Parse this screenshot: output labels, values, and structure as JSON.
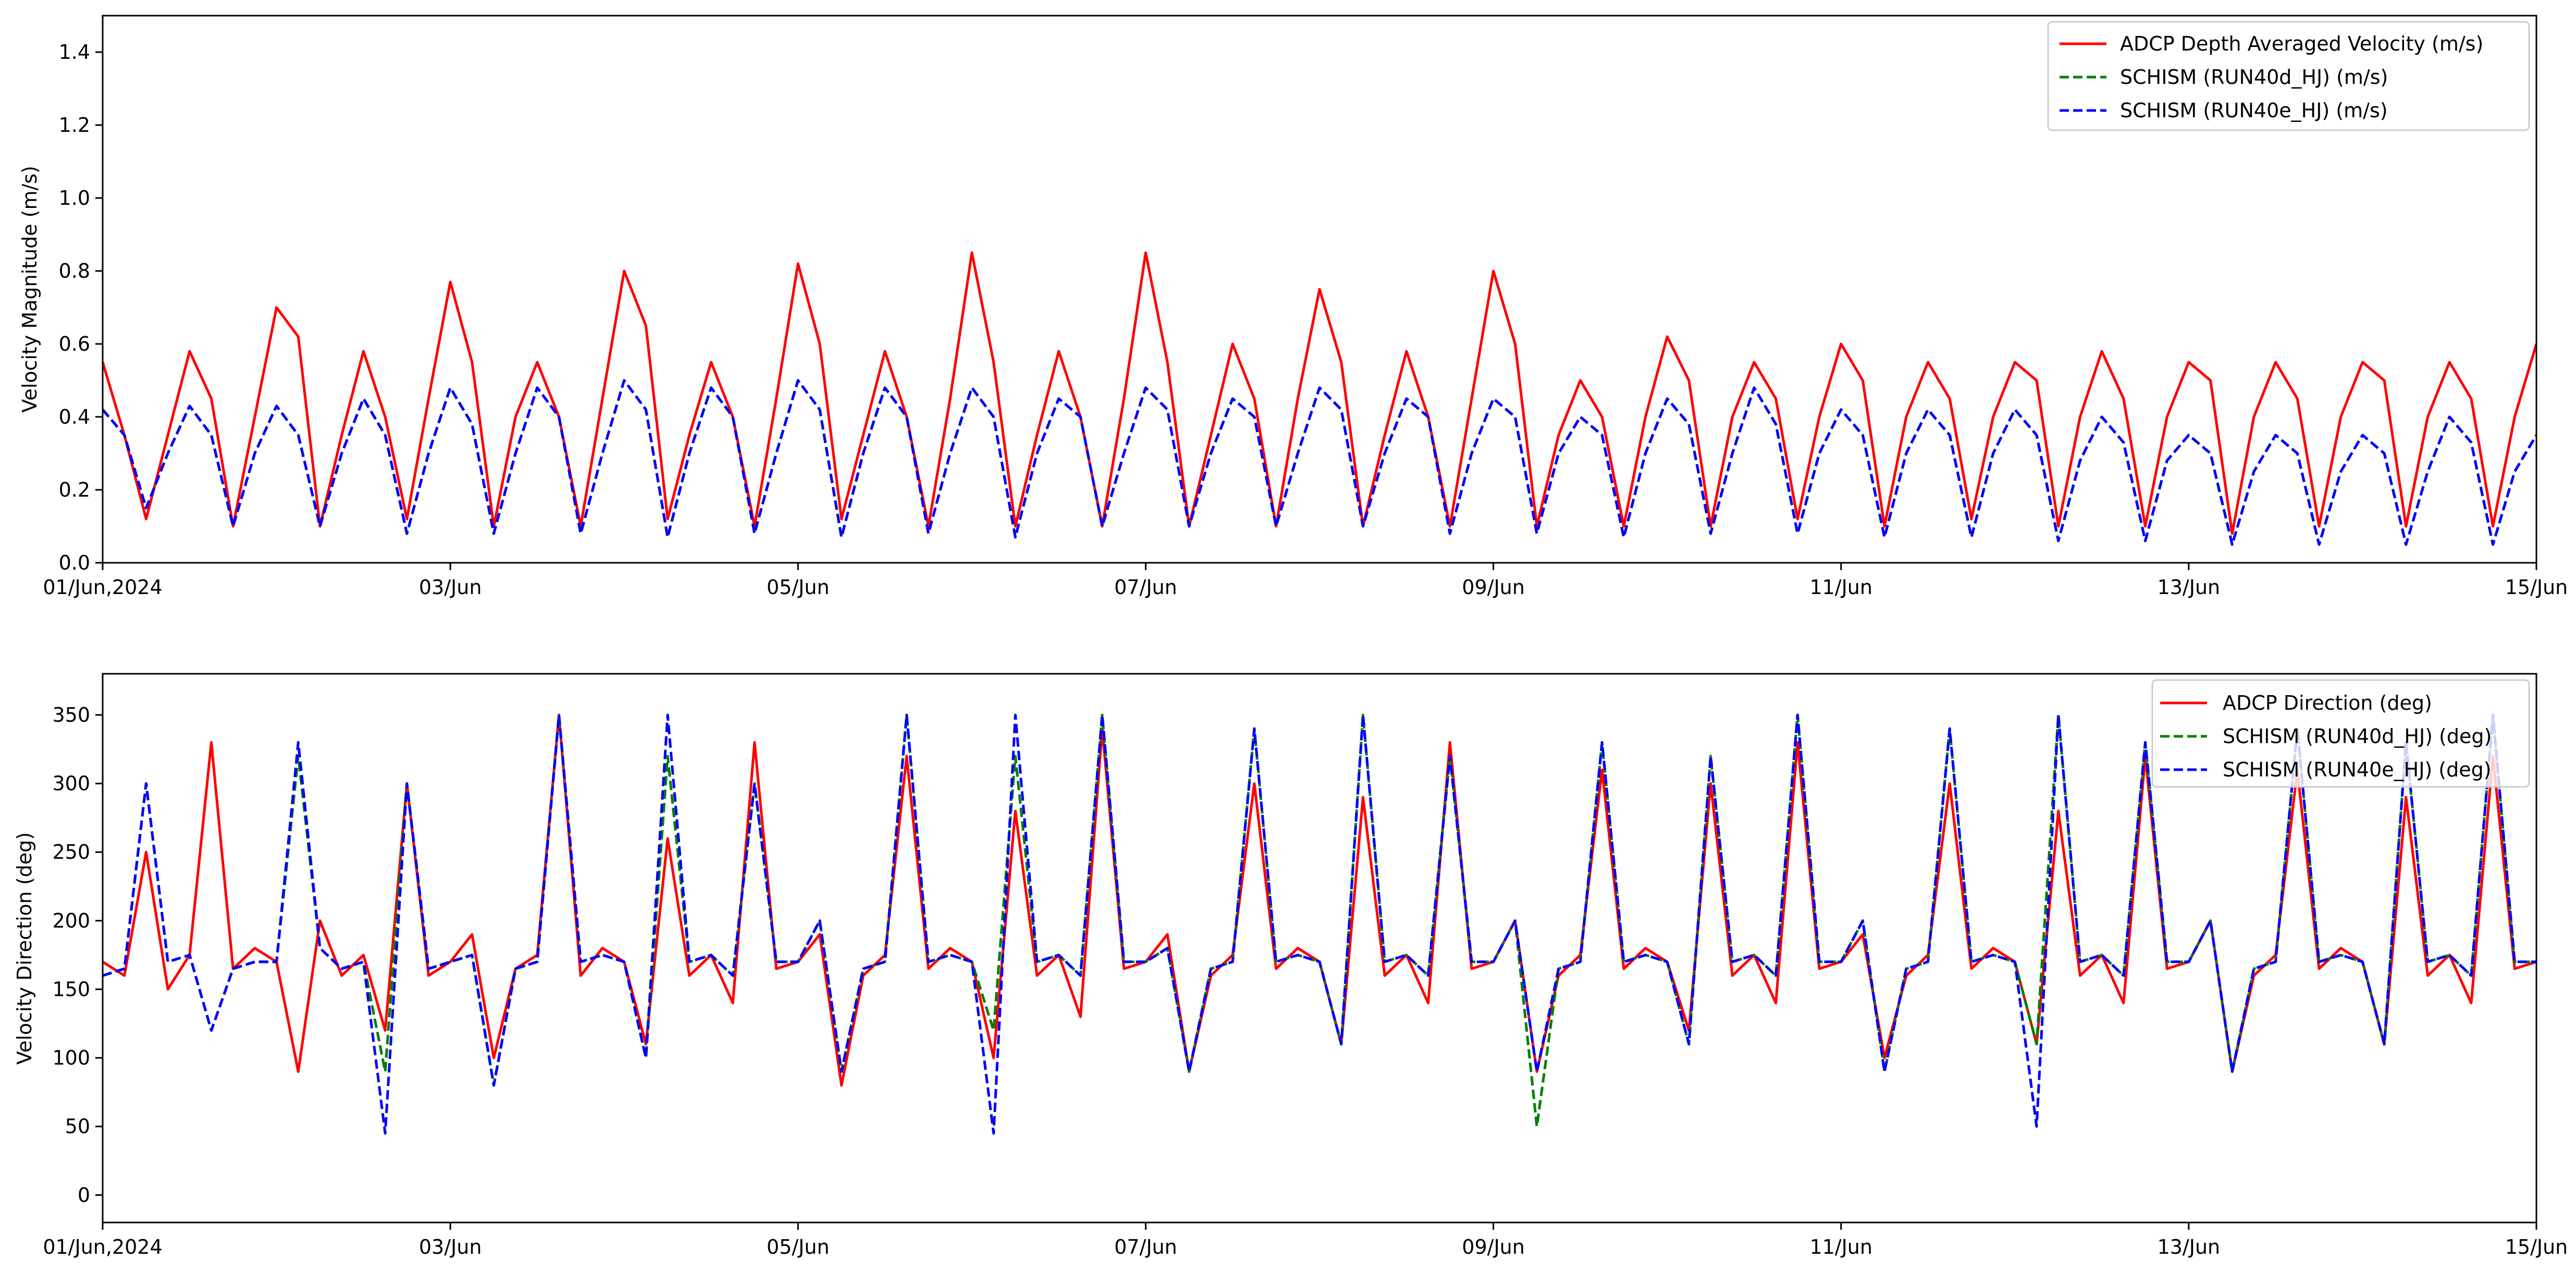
{
  "chart_data": [
    {
      "type": "line",
      "ylabel": "Velocity Magnitude (m/s)",
      "xlabel": "",
      "xlim": [
        "2024-06-01",
        "2024-06-15"
      ],
      "ylim": [
        0.0,
        1.5
      ],
      "grid": false,
      "legend_position": "top-right",
      "x_ticks": [
        "01/Jun,2024",
        "03/Jun",
        "05/Jun",
        "07/Jun",
        "09/Jun",
        "11/Jun",
        "13/Jun",
        "15/Jun"
      ],
      "y_ticks": [
        "0.0",
        "0.2",
        "0.4",
        "0.6",
        "0.8",
        "1.0",
        "1.2",
        "1.4"
      ],
      "series_note": "values sampled every 3 hours from 2024-06-01 00:00 to 2024-06-15 00:00",
      "series": [
        {
          "name": "ADCP Depth Averaged Velocity (m/s)",
          "style": "solid",
          "color": "#ff0000",
          "values": [
            0.55,
            0.35,
            0.12,
            0.35,
            0.58,
            0.45,
            0.1,
            0.4,
            0.7,
            0.62,
            0.1,
            0.35,
            0.58,
            0.4,
            0.12,
            0.45,
            0.77,
            0.55,
            0.1,
            0.4,
            0.55,
            0.4,
            0.1,
            0.45,
            0.8,
            0.65,
            0.12,
            0.35,
            0.55,
            0.4,
            0.1,
            0.45,
            0.82,
            0.6,
            0.12,
            0.35,
            0.58,
            0.4,
            0.1,
            0.45,
            0.85,
            0.55,
            0.1,
            0.35,
            0.58,
            0.4,
            0.1,
            0.45,
            0.85,
            0.55,
            0.1,
            0.35,
            0.6,
            0.45,
            0.1,
            0.45,
            0.75,
            0.55,
            0.1,
            0.35,
            0.58,
            0.4,
            0.1,
            0.45,
            0.8,
            0.6,
            0.1,
            0.35,
            0.5,
            0.4,
            0.1,
            0.4,
            0.62,
            0.5,
            0.1,
            0.4,
            0.55,
            0.45,
            0.12,
            0.4,
            0.6,
            0.5,
            0.1,
            0.4,
            0.55,
            0.45,
            0.12,
            0.4,
            0.55,
            0.5,
            0.1,
            0.4,
            0.58,
            0.45,
            0.1,
            0.4,
            0.55,
            0.5,
            0.08,
            0.4,
            0.55,
            0.45,
            0.1,
            0.4,
            0.55,
            0.5,
            0.1,
            0.4,
            0.55,
            0.45,
            0.1,
            0.4,
            0.6
          ]
        },
        {
          "name": "SCHISM (RUN40d_HJ) (m/s)",
          "style": "dashed",
          "color": "#008000",
          "values": [
            0.42,
            0.35,
            0.15,
            0.3,
            0.43,
            0.35,
            0.1,
            0.3,
            0.43,
            0.35,
            0.1,
            0.3,
            0.45,
            0.35,
            0.08,
            0.3,
            0.48,
            0.38,
            0.08,
            0.3,
            0.48,
            0.4,
            0.08,
            0.3,
            0.5,
            0.42,
            0.07,
            0.3,
            0.48,
            0.4,
            0.08,
            0.3,
            0.5,
            0.42,
            0.07,
            0.3,
            0.48,
            0.4,
            0.08,
            0.3,
            0.48,
            0.4,
            0.07,
            0.3,
            0.45,
            0.4,
            0.1,
            0.3,
            0.48,
            0.42,
            0.1,
            0.3,
            0.45,
            0.4,
            0.1,
            0.3,
            0.48,
            0.42,
            0.1,
            0.3,
            0.45,
            0.4,
            0.08,
            0.3,
            0.45,
            0.4,
            0.08,
            0.3,
            0.4,
            0.35,
            0.07,
            0.3,
            0.45,
            0.38,
            0.08,
            0.3,
            0.48,
            0.38,
            0.08,
            0.3,
            0.42,
            0.35,
            0.07,
            0.3,
            0.42,
            0.35,
            0.07,
            0.3,
            0.42,
            0.35,
            0.06,
            0.28,
            0.4,
            0.33,
            0.06,
            0.28,
            0.35,
            0.3,
            0.05,
            0.25,
            0.35,
            0.3,
            0.05,
            0.25,
            0.35,
            0.3,
            0.05,
            0.25,
            0.4,
            0.33,
            0.05,
            0.25,
            0.35
          ]
        },
        {
          "name": "SCHISM (RUN40e_HJ) (m/s)",
          "style": "dashed",
          "color": "#0000ff",
          "values": [
            0.42,
            0.35,
            0.15,
            0.3,
            0.43,
            0.35,
            0.1,
            0.3,
            0.43,
            0.35,
            0.1,
            0.3,
            0.45,
            0.35,
            0.08,
            0.3,
            0.48,
            0.38,
            0.08,
            0.3,
            0.48,
            0.4,
            0.08,
            0.3,
            0.5,
            0.42,
            0.07,
            0.3,
            0.48,
            0.4,
            0.08,
            0.3,
            0.5,
            0.42,
            0.07,
            0.3,
            0.48,
            0.4,
            0.08,
            0.3,
            0.48,
            0.4,
            0.07,
            0.3,
            0.45,
            0.4,
            0.1,
            0.3,
            0.48,
            0.42,
            0.1,
            0.3,
            0.45,
            0.4,
            0.1,
            0.3,
            0.48,
            0.42,
            0.1,
            0.3,
            0.45,
            0.4,
            0.08,
            0.3,
            0.45,
            0.4,
            0.08,
            0.3,
            0.4,
            0.35,
            0.07,
            0.3,
            0.45,
            0.38,
            0.08,
            0.3,
            0.48,
            0.38,
            0.08,
            0.3,
            0.42,
            0.35,
            0.07,
            0.3,
            0.42,
            0.35,
            0.07,
            0.3,
            0.42,
            0.35,
            0.06,
            0.28,
            0.4,
            0.33,
            0.06,
            0.28,
            0.35,
            0.3,
            0.05,
            0.25,
            0.35,
            0.3,
            0.05,
            0.25,
            0.35,
            0.3,
            0.05,
            0.25,
            0.4,
            0.33,
            0.05,
            0.25,
            0.35
          ]
        }
      ]
    },
    {
      "type": "line",
      "ylabel": "Velocity Direction (deg)",
      "xlabel": "",
      "xlim": [
        "2024-06-01",
        "2024-06-15"
      ],
      "ylim": [
        -20,
        380
      ],
      "grid": false,
      "legend_position": "top-right",
      "x_ticks": [
        "01/Jun,2024",
        "03/Jun",
        "05/Jun",
        "07/Jun",
        "09/Jun",
        "11/Jun",
        "13/Jun",
        "15/Jun"
      ],
      "y_ticks": [
        "0",
        "50",
        "100",
        "150",
        "200",
        "250",
        "300",
        "350"
      ],
      "series_note": "values sampled every 3 hours from 2024-06-01 00:00 to 2024-06-15 00:00",
      "series": [
        {
          "name": "ADCP Direction (deg)",
          "style": "solid",
          "color": "#ff0000",
          "values": [
            170,
            160,
            250,
            150,
            175,
            330,
            165,
            180,
            170,
            90,
            200,
            160,
            175,
            120,
            300,
            160,
            170,
            190,
            100,
            165,
            175,
            350,
            160,
            180,
            170,
            110,
            260,
            160,
            175,
            140,
            330,
            165,
            170,
            190,
            80,
            160,
            175,
            320,
            165,
            180,
            170,
            100,
            280,
            160,
            175,
            130,
            340,
            165,
            170,
            190,
            90,
            160,
            175,
            300,
            165,
            180,
            170,
            110,
            290,
            160,
            175,
            140,
            330,
            165,
            170,
            200,
            90,
            160,
            175,
            310,
            165,
            180,
            170,
            120,
            300,
            160,
            175,
            140,
            330,
            165,
            170,
            190,
            100,
            160,
            175,
            300,
            165,
            180,
            170,
            110,
            280,
            160,
            175,
            140,
            320,
            165,
            170,
            200,
            90,
            160,
            175,
            310,
            165,
            180,
            170,
            110,
            290,
            160,
            175,
            140,
            320,
            165,
            170
          ]
        },
        {
          "name": "SCHISM (RUN40d_HJ) (deg)",
          "style": "dashed",
          "color": "#008000",
          "values": [
            160,
            165,
            300,
            170,
            175,
            120,
            165,
            170,
            170,
            320,
            180,
            165,
            170,
            90,
            300,
            165,
            170,
            175,
            80,
            165,
            170,
            350,
            170,
            175,
            170,
            100,
            320,
            170,
            175,
            160,
            300,
            170,
            170,
            200,
            90,
            165,
            170,
            350,
            170,
            175,
            170,
            120,
            320,
            170,
            175,
            160,
            350,
            170,
            170,
            180,
            90,
            165,
            170,
            340,
            170,
            175,
            170,
            110,
            350,
            170,
            175,
            160,
            320,
            170,
            170,
            200,
            50,
            165,
            170,
            330,
            170,
            175,
            170,
            110,
            320,
            170,
            175,
            160,
            350,
            170,
            170,
            200,
            90,
            165,
            170,
            340,
            170,
            175,
            170,
            110,
            350,
            170,
            175,
            160,
            330,
            170,
            170,
            200,
            90,
            165,
            170,
            340,
            170,
            175,
            170,
            110,
            330,
            170,
            175,
            160,
            350,
            170,
            170
          ]
        },
        {
          "name": "SCHISM (RUN40e_HJ) (deg)",
          "style": "dashed",
          "color": "#0000ff",
          "values": [
            160,
            165,
            300,
            170,
            175,
            120,
            165,
            170,
            170,
            330,
            180,
            165,
            170,
            45,
            300,
            165,
            170,
            175,
            80,
            165,
            170,
            350,
            170,
            175,
            170,
            100,
            350,
            170,
            175,
            160,
            300,
            170,
            170,
            200,
            90,
            165,
            170,
            350,
            170,
            175,
            170,
            45,
            350,
            170,
            175,
            160,
            350,
            170,
            170,
            180,
            90,
            165,
            170,
            340,
            170,
            175,
            170,
            110,
            350,
            170,
            175,
            160,
            320,
            170,
            170,
            200,
            90,
            165,
            170,
            330,
            170,
            175,
            170,
            110,
            320,
            170,
            175,
            160,
            350,
            170,
            170,
            200,
            90,
            165,
            170,
            340,
            170,
            175,
            170,
            50,
            350,
            170,
            175,
            160,
            330,
            170,
            170,
            200,
            90,
            165,
            170,
            340,
            170,
            175,
            170,
            110,
            330,
            170,
            175,
            160,
            350,
            170,
            170
          ]
        }
      ]
    }
  ]
}
